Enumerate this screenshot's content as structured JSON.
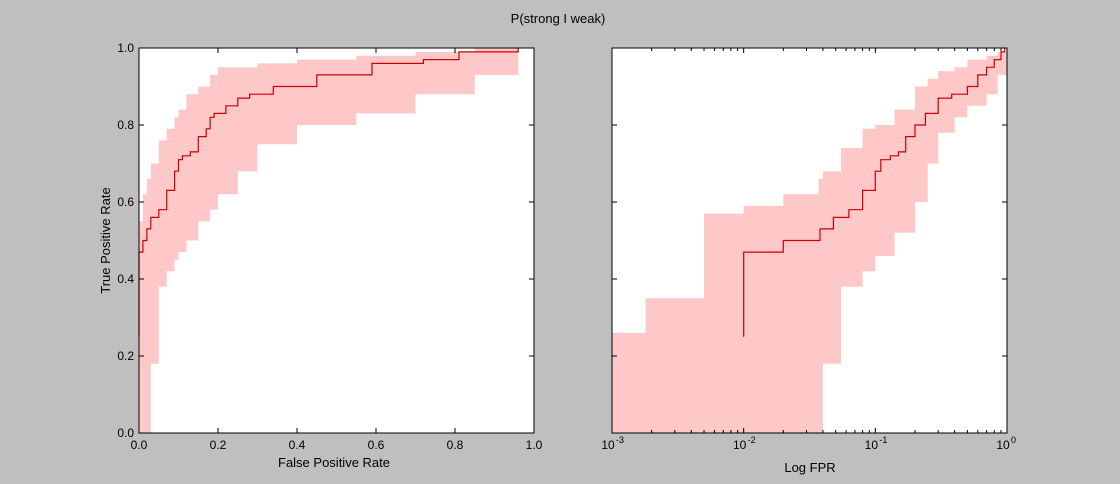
{
  "figure": {
    "title": "P(strong I weak)",
    "background": "#bfbfbf",
    "line_color": "#cc0000",
    "band_color": "#ffc8c8"
  },
  "chart_data": [
    {
      "type": "line",
      "title": "",
      "xlabel": "False Positive Rate",
      "ylabel": "True Positive Rate",
      "xlim": [
        0.0,
        1.0
      ],
      "ylim": [
        0.0,
        1.0
      ],
      "xscale": "linear",
      "grid": false,
      "xticks": [
        0.0,
        0.2,
        0.4,
        0.6,
        0.8,
        1.0
      ],
      "xtick_labels": [
        "0.0",
        "0.2",
        "0.4",
        "0.6",
        "0.8",
        "1.0"
      ],
      "yticks": [
        0.0,
        0.2,
        0.4,
        0.6,
        0.8,
        1.0
      ],
      "ytick_labels": [
        "0.0",
        "0.2",
        "0.4",
        "0.6",
        "0.8",
        "1.0"
      ],
      "series": [
        {
          "style": "step",
          "x": [
            0.0,
            0.0,
            0.01,
            0.01,
            0.02,
            0.02,
            0.03,
            0.03,
            0.05,
            0.05,
            0.07,
            0.07,
            0.09,
            0.09,
            0.1,
            0.1,
            0.11,
            0.11,
            0.13,
            0.13,
            0.15,
            0.15,
            0.17,
            0.17,
            0.18,
            0.18,
            0.19,
            0.19,
            0.22,
            0.22,
            0.25,
            0.25,
            0.28,
            0.28,
            0.34,
            0.34,
            0.45,
            0.45,
            0.59,
            0.59,
            0.72,
            0.72,
            0.81,
            0.81,
            0.96,
            0.96
          ],
          "y": [
            0.25,
            0.47,
            0.47,
            0.5,
            0.5,
            0.53,
            0.53,
            0.56,
            0.56,
            0.58,
            0.58,
            0.63,
            0.63,
            0.68,
            0.68,
            0.71,
            0.71,
            0.72,
            0.72,
            0.73,
            0.73,
            0.77,
            0.77,
            0.79,
            0.79,
            0.82,
            0.82,
            0.83,
            0.83,
            0.85,
            0.85,
            0.87,
            0.87,
            0.88,
            0.88,
            0.9,
            0.9,
            0.93,
            0.93,
            0.96,
            0.96,
            0.97,
            0.97,
            0.99,
            0.99,
            1.0
          ]
        }
      ],
      "band": {
        "x": [
          0.0,
          0.01,
          0.02,
          0.03,
          0.05,
          0.07,
          0.09,
          0.1,
          0.12,
          0.15,
          0.18,
          0.2,
          0.25,
          0.3,
          0.4,
          0.55,
          0.7,
          0.85,
          0.96
        ],
        "lower": [
          0.0,
          0.0,
          0.0,
          0.18,
          0.38,
          0.42,
          0.45,
          0.47,
          0.5,
          0.55,
          0.58,
          0.62,
          0.68,
          0.75,
          0.8,
          0.83,
          0.88,
          0.93,
          0.95
        ],
        "upper": [
          0.55,
          0.62,
          0.66,
          0.7,
          0.76,
          0.79,
          0.82,
          0.84,
          0.88,
          0.9,
          0.93,
          0.95,
          0.95,
          0.96,
          0.97,
          0.98,
          0.99,
          1.0,
          1.0
        ]
      }
    },
    {
      "type": "line",
      "title": "",
      "xlabel": "Log FPR",
      "ylabel": "",
      "xlim": [
        0.001,
        1.0
      ],
      "ylim": [
        0.0,
        1.0
      ],
      "xscale": "log",
      "grid": false,
      "xticks": [
        0.001,
        0.01,
        0.1,
        1.0
      ],
      "xtick_labels": [
        {
          "base": "10",
          "exp": "-3"
        },
        {
          "base": "10",
          "exp": "-2"
        },
        {
          "base": "10",
          "exp": "-1"
        },
        {
          "base": "10",
          "exp": "0"
        }
      ],
      "series": [
        {
          "style": "step",
          "x": [
            0.01,
            0.01,
            0.02,
            0.02,
            0.038,
            0.038,
            0.048,
            0.048,
            0.063,
            0.063,
            0.08,
            0.08,
            0.1,
            0.1,
            0.11,
            0.11,
            0.13,
            0.13,
            0.15,
            0.15,
            0.17,
            0.17,
            0.2,
            0.2,
            0.24,
            0.24,
            0.3,
            0.3,
            0.38,
            0.38,
            0.5,
            0.5,
            0.6,
            0.6,
            0.7,
            0.7,
            0.8,
            0.8,
            0.9,
            0.9,
            0.96,
            0.96
          ],
          "y": [
            0.25,
            0.47,
            0.47,
            0.5,
            0.5,
            0.53,
            0.53,
            0.56,
            0.56,
            0.58,
            0.58,
            0.63,
            0.63,
            0.68,
            0.68,
            0.71,
            0.71,
            0.72,
            0.72,
            0.73,
            0.73,
            0.77,
            0.77,
            0.8,
            0.8,
            0.83,
            0.83,
            0.87,
            0.87,
            0.88,
            0.88,
            0.9,
            0.9,
            0.93,
            0.93,
            0.95,
            0.95,
            0.97,
            0.97,
            0.99,
            0.99,
            1.0
          ]
        }
      ],
      "band": {
        "x": [
          0.001,
          0.0018,
          0.005,
          0.01,
          0.02,
          0.037,
          0.04,
          0.055,
          0.08,
          0.1,
          0.14,
          0.2,
          0.25,
          0.3,
          0.4,
          0.5,
          0.7,
          0.85,
          1.0
        ],
        "lower": [
          0.0,
          0.0,
          0.0,
          0.0,
          0.0,
          0.0,
          0.18,
          0.38,
          0.42,
          0.46,
          0.52,
          0.6,
          0.7,
          0.78,
          0.82,
          0.85,
          0.88,
          0.93,
          0.98
        ],
        "upper": [
          0.26,
          0.35,
          0.57,
          0.59,
          0.62,
          0.66,
          0.68,
          0.74,
          0.79,
          0.8,
          0.84,
          0.9,
          0.92,
          0.94,
          0.95,
          0.97,
          0.98,
          0.99,
          1.0
        ]
      }
    }
  ]
}
